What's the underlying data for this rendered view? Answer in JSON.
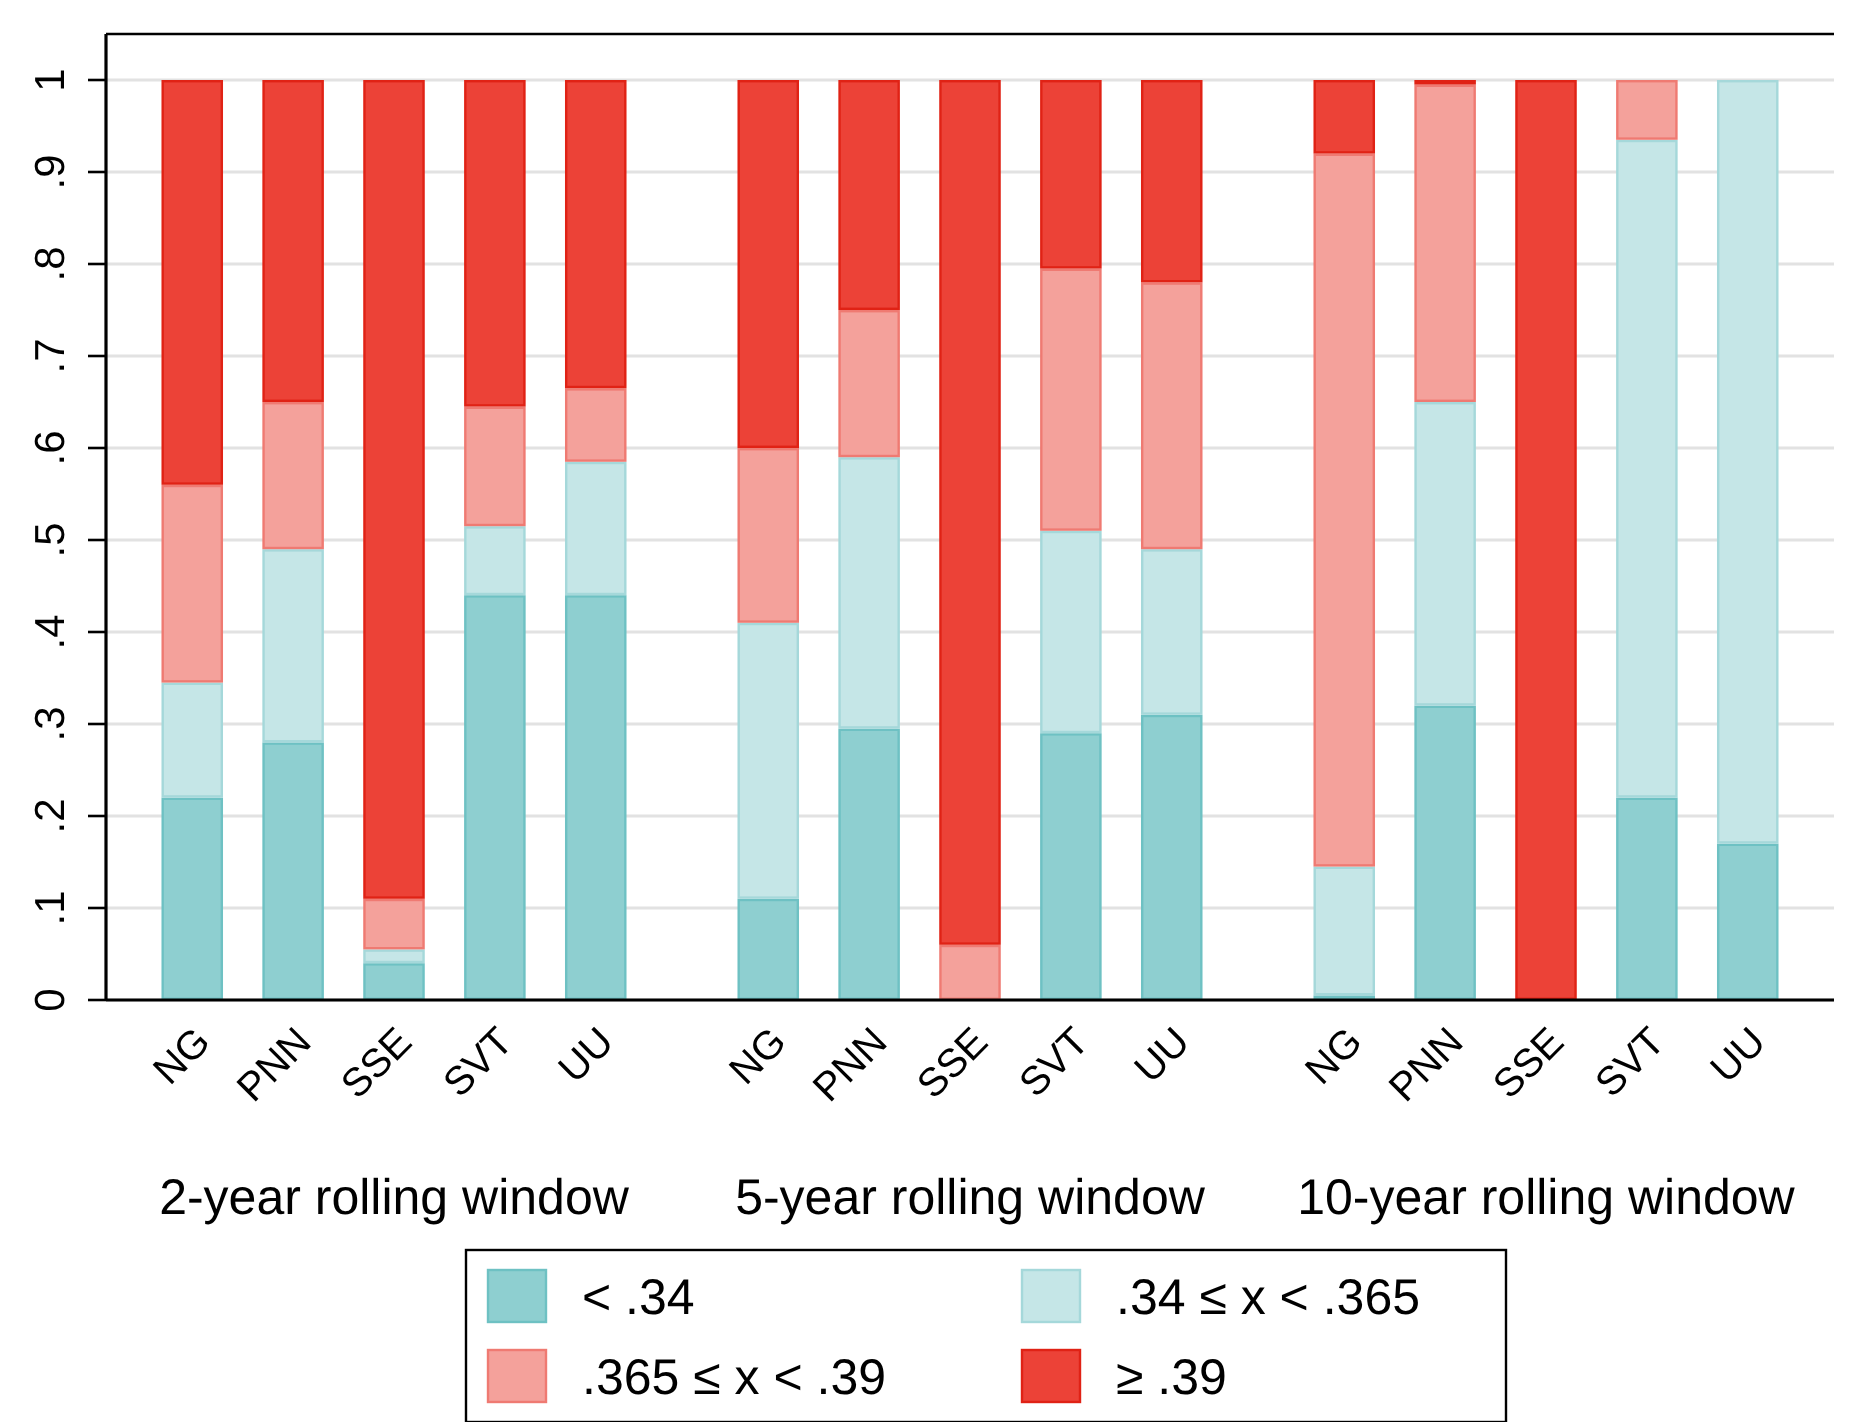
{
  "chart_data": [
    {
      "type": "bar",
      "stacked": true,
      "xlabel": "2-year rolling window",
      "categories": [
        "NG",
        "PNN",
        "SSE",
        "SVT",
        "UU"
      ],
      "series": [
        {
          "color": "#8ecfd0",
          "values": [
            0.22,
            0.28,
            0.04,
            0.44,
            0.44
          ]
        },
        {
          "color": "#c5e6e7",
          "values": [
            0.125,
            0.21,
            0.015,
            0.075,
            0.145
          ]
        },
        {
          "color": "#f4a19b",
          "values": [
            0.215,
            0.16,
            0.055,
            0.13,
            0.08
          ]
        },
        {
          "color": "#ec4237",
          "values": [
            0.44,
            0.35,
            0.89,
            0.355,
            0.335
          ]
        }
      ],
      "ylim": [
        0,
        1.05
      ],
      "yticks": [
        0,
        {
          "value": 0.1,
          "label": ".1"
        },
        {
          "value": 0.2,
          "label": ".2"
        },
        {
          "value": 0.3,
          "label": ".3"
        },
        {
          "value": 0.4,
          "label": ".4"
        },
        {
          "value": 0.5,
          "label": ".5"
        },
        {
          "value": 0.6,
          "label": ".6"
        },
        {
          "value": 0.7,
          "label": ".7"
        },
        {
          "value": 0.8,
          "label": ".8"
        },
        {
          "value": 0.9,
          "label": ".9"
        },
        1
      ],
      "grid": "y"
    },
    {
      "type": "bar",
      "stacked": true,
      "xlabel": "5-year rolling window",
      "categories": [
        "NG",
        "PNN",
        "SSE",
        "SVT",
        "UU"
      ],
      "series": [
        {
          "name": "< .34",
          "color": "#8ecfd0",
          "values": [
            0.11,
            0.295,
            0,
            0.29,
            0.31
          ]
        },
        {
          "name": ".34 ≤ x < .365",
          "color": "#c5e6e7",
          "values": [
            0.3,
            0.295,
            0,
            0.22,
            0.18
          ]
        },
        {
          "name": ".365 ≤ x < .39",
          "color": "#f4a19b",
          "values": [
            0.19,
            0.16,
            0.06,
            0.285,
            0.29
          ]
        },
        {
          "name": "≥ .39",
          "color": "#ec4237",
          "values": [
            0.4,
            0.25,
            0.94,
            0.205,
            0.22
          ]
        }
      ],
      "ylim": [
        0,
        1.05
      ],
      "yticks": [
        0,
        0.1,
        0.2,
        0.3,
        0.4,
        0.5,
        0.6,
        0.7,
        0.8,
        0.9,
        1
      ],
      "grid": "y",
      "tick_labels": "x",
      "legend": "bottom"
    },
    {
      "type": "bar",
      "stacked": true,
      "xlabel": "10-year rolling window",
      "categories": [
        "NG",
        "PNN",
        "SSE",
        "SVT",
        "UU"
      ],
      "series": [
        {
          "color": "#8ecfd0",
          "values": [
            0.005,
            0.32,
            0,
            0.22,
            0.17
          ]
        },
        {
          "color": "#c5e6e7",
          "values": [
            0.14,
            0.33,
            0,
            0.715,
            0.83
          ]
        },
        {
          "color": "#f4a19b",
          "values": [
            0.775,
            0.345,
            0,
            0.065,
            0
          ]
        },
        {
          "color": "#ec4237",
          "values": [
            0.08,
            0.005,
            1,
            0,
            0
          ]
        }
      ],
      "ylim": [
        0,
        1.05
      ],
      "yticks": [
        0,
        0.1,
        0.2,
        0.3,
        0.4,
        0.5,
        0.6,
        0.7,
        0.8,
        0.9,
        1
      ],
      "grid": "y",
      "tick_labels": "x"
    }
  ]
}
